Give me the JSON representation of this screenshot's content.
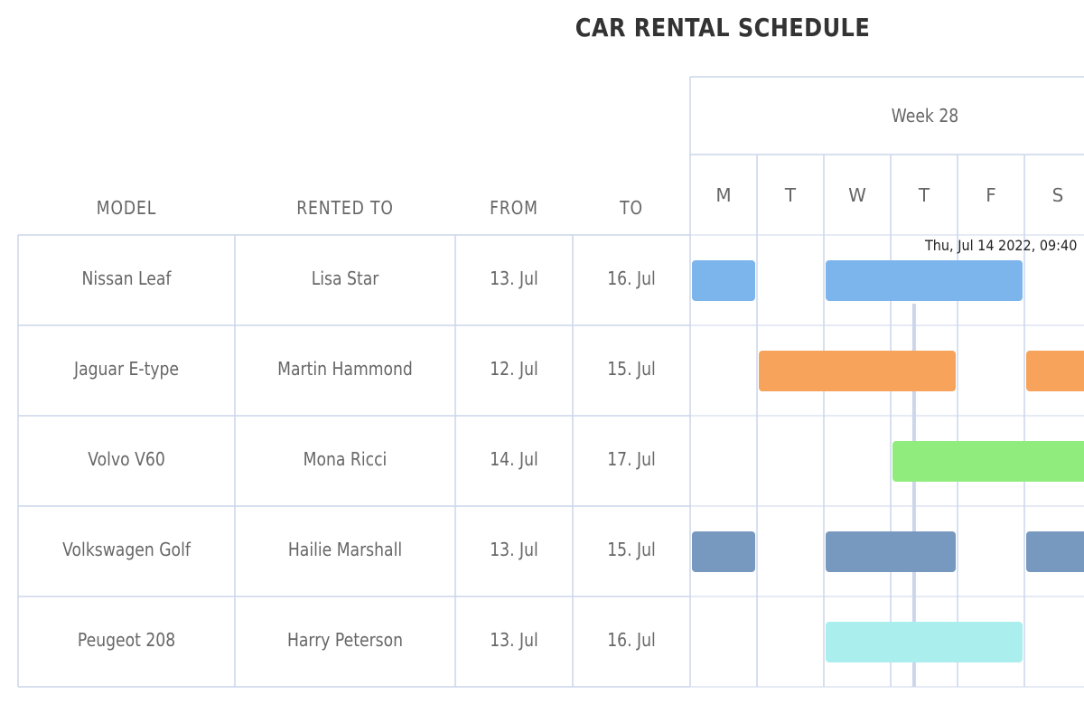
{
  "chart_data": {
    "type": "gantt",
    "title": "CAR RENTAL SCHEDULE",
    "columns": [
      "MODEL",
      "RENTED TO",
      "FROM",
      "TO"
    ],
    "week_label": "Week 28",
    "days": [
      "M",
      "T",
      "W",
      "T",
      "F",
      "S"
    ],
    "current_time_label": "Thu, Jul 14 2022, 09:40",
    "current_time_day": 3.35,
    "rows": [
      {
        "model": "Nissan Leaf",
        "rented_to": "Lisa Star",
        "from": "13. Jul",
        "to": "16. Jul",
        "color": "#7cb5ec",
        "segments": [
          [
            0,
            1
          ],
          [
            2,
            5
          ]
        ]
      },
      {
        "model": "Jaguar E-type",
        "rented_to": "Martin Hammond",
        "from": "12. Jul",
        "to": "15. Jul",
        "color": "#f7a35c",
        "segments": [
          [
            1,
            4
          ],
          [
            5,
            6
          ]
        ]
      },
      {
        "model": "Volvo V60",
        "rented_to": "Mona Ricci",
        "from": "14. Jul",
        "to": "17. Jul",
        "color": "#90ed7d",
        "segments": [
          [
            3,
            6
          ]
        ]
      },
      {
        "model": "Volkswagen Golf",
        "rented_to": "Hailie Marshall",
        "from": "13. Jul",
        "to": "15. Jul",
        "color": "#7798bf",
        "segments": [
          [
            0,
            1
          ],
          [
            2,
            4
          ],
          [
            5,
            6
          ]
        ]
      },
      {
        "model": "Peugeot 208",
        "rented_to": "Harry Peterson",
        "from": "13. Jul",
        "to": "16. Jul",
        "color": "#aaeeee",
        "segments": [
          [
            2,
            5
          ]
        ]
      }
    ]
  }
}
